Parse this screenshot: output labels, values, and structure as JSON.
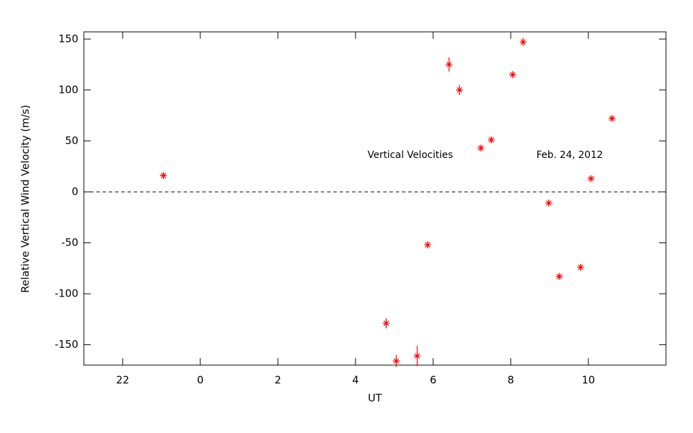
{
  "chart_data": {
    "type": "scatter",
    "xlabel": "UT",
    "ylabel": "Relative Vertical Wind Velocity (m/s)",
    "annotations": [
      "Vertical Velocities",
      "Feb. 24, 2012"
    ],
    "xlim": [
      -3,
      12
    ],
    "ylim": [
      -170,
      157
    ],
    "xticks": [
      {
        "value": -2,
        "label": "22"
      },
      0,
      2,
      4,
      6,
      8,
      10
    ],
    "yticks": [
      -150,
      -100,
      -50,
      0,
      50,
      100,
      150
    ],
    "hline": 0,
    "color": "#ff0000",
    "series": [
      {
        "x": [
          -0.95,
          4.79,
          5.05,
          5.59,
          5.86,
          6.41,
          6.68,
          7.23,
          7.5,
          8.05,
          8.32,
          8.98,
          9.25,
          9.8,
          10.07,
          10.61
        ],
        "y": [
          16,
          -129,
          -166,
          -161,
          -52,
          125,
          100,
          43,
          51,
          115,
          147,
          -11,
          -83,
          -74,
          13,
          72
        ],
        "errors": [
          3,
          5,
          6,
          10,
          3,
          7,
          5,
          3,
          3,
          3,
          4,
          3,
          3,
          3,
          3,
          3
        ]
      }
    ]
  }
}
